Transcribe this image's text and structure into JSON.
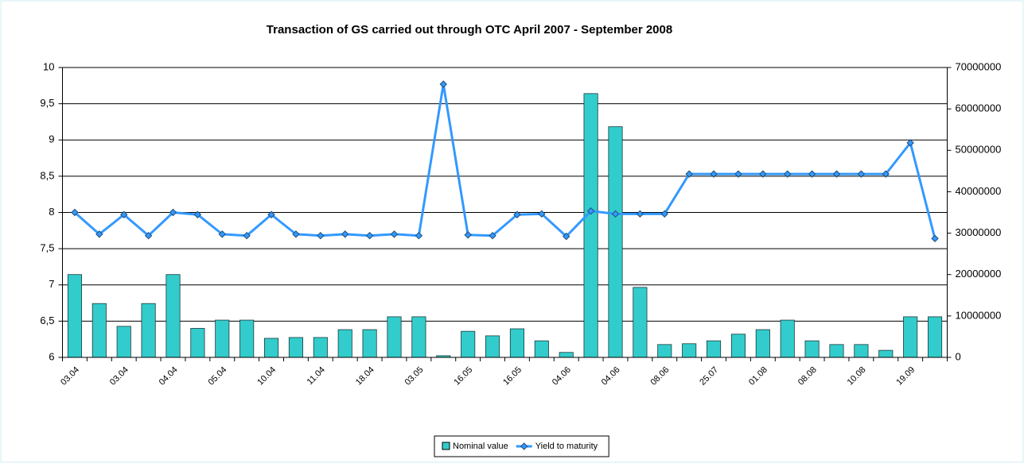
{
  "chart_data": {
    "type": "combo",
    "title": "Transaction of GS carried out through OTC April 2007 - September 2008",
    "categories": [
      "03.04",
      null,
      "03.04",
      null,
      "04.04",
      null,
      "05.04",
      null,
      "10.04",
      null,
      "11.04",
      null,
      "18.04",
      null,
      "03.05",
      null,
      "16.05",
      null,
      "16.05",
      null,
      "04.06",
      null,
      "04.06",
      null,
      "08.06",
      null,
      "25.07",
      null,
      "01.08",
      null,
      "08.08",
      null,
      "10.08",
      null,
      "19.09",
      null
    ],
    "series": [
      {
        "name": "Nominal value",
        "type": "bar",
        "axis": "y2",
        "color": "#33cccc",
        "values": [
          20000000,
          13000000,
          7500000,
          13000000,
          20000000,
          7000000,
          9000000,
          9000000,
          4600000,
          4800000,
          4800000,
          6700000,
          6700000,
          9800000,
          9800000,
          400000,
          6300000,
          5200000,
          6900000,
          4000000,
          1200000,
          63700000,
          55700000,
          16900000,
          3100000,
          3300000,
          4000000,
          5600000,
          6700000,
          9000000,
          4000000,
          3100000,
          3100000,
          1700000,
          9800000,
          9800000
        ]
      },
      {
        "name": "Yield to maturity",
        "type": "line",
        "color": "#3399ff",
        "values": [
          8.0,
          7.7,
          7.97,
          7.68,
          8.0,
          7.97,
          7.7,
          7.68,
          7.97,
          7.7,
          7.68,
          7.7,
          7.68,
          7.7,
          7.68,
          9.77,
          7.69,
          7.68,
          7.97,
          7.98,
          7.67,
          8.02,
          7.98,
          7.98,
          7.98,
          8.53,
          8.53,
          8.53,
          8.53,
          8.53,
          8.53,
          8.53,
          8.53,
          8.53,
          8.96,
          7.64
        ]
      }
    ],
    "ylim": [
      6,
      10
    ],
    "yticks": [
      6,
      {
        "value": 6.5,
        "label": "6,5"
      },
      7,
      {
        "value": 7.5,
        "label": "7,5"
      },
      8,
      {
        "value": 8.5,
        "label": "8,5"
      },
      9,
      {
        "value": 9.5,
        "label": "9,5"
      },
      10
    ],
    "y2lim": [
      0,
      70000000
    ],
    "y2ticks": [
      0,
      10000000,
      20000000,
      30000000,
      40000000,
      50000000,
      60000000,
      70000000
    ],
    "grid": true,
    "legend": "bottom"
  }
}
